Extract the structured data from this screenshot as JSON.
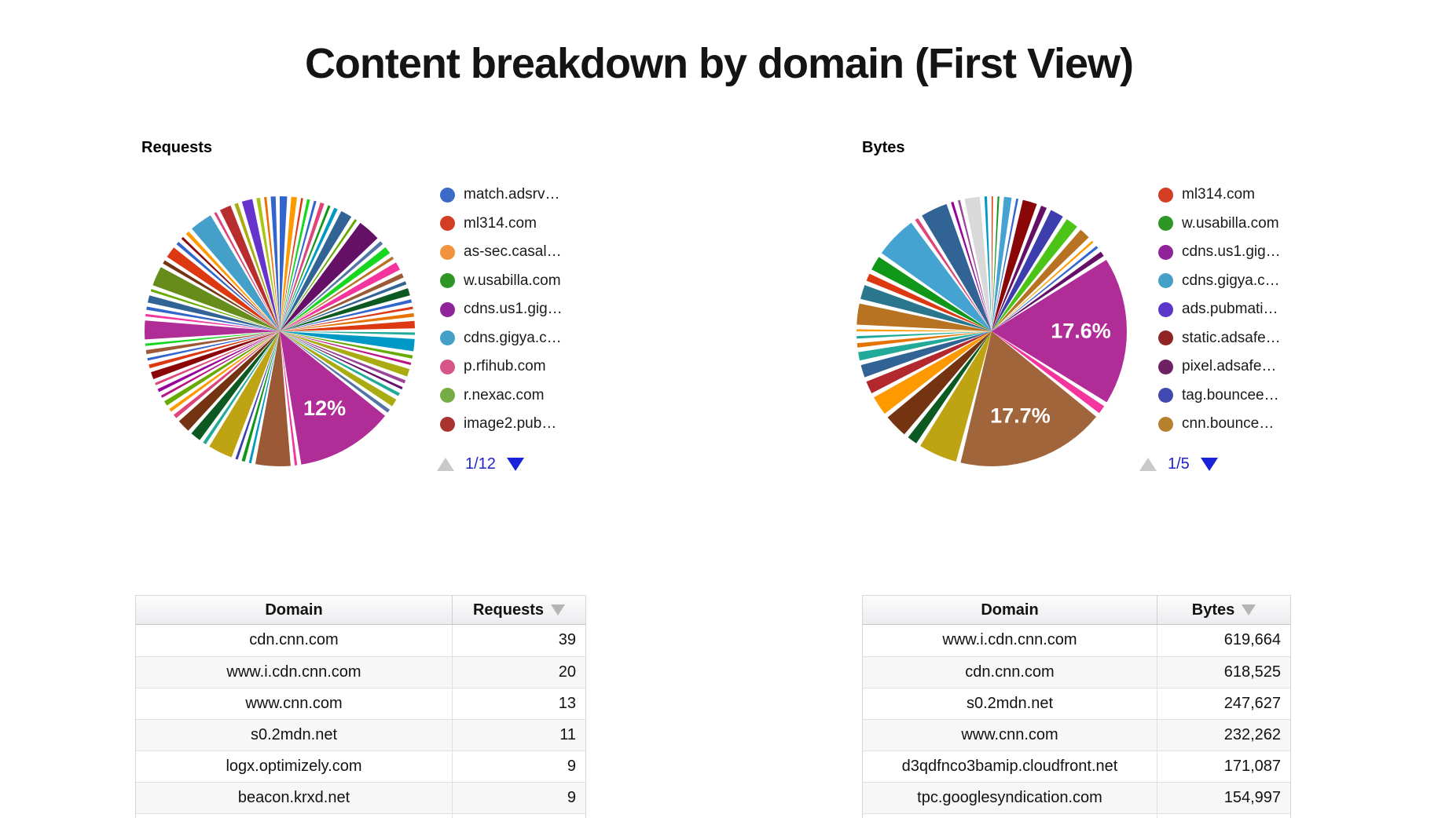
{
  "page": {
    "title": "Content breakdown by domain (First View)"
  },
  "ui_colors": {
    "pager_text_blue": "#2222CC",
    "pager_arrow_active_blue": "#1823D8",
    "pager_arrow_disabled_gray": "#C9C9C9",
    "sort_arrow_gray": "#B5B5B5",
    "table_header_gradient_top": "#FCFCFC",
    "table_header_gradient_bottom": "#ECECF0"
  },
  "chart_data": [
    {
      "type": "pie",
      "title": "Requests",
      "legend_position": "right",
      "pager_label": "1/12",
      "gap_weight": 0.5,
      "legend": [
        {
          "label": "match.adsrv…",
          "color": "#3B6BC7"
        },
        {
          "label": "ml314.com",
          "color": "#D23D23"
        },
        {
          "label": "as-sec.casal…",
          "color": "#F0933C"
        },
        {
          "label": "w.usabilla.com",
          "color": "#2E9625"
        },
        {
          "label": "cdns.us1.gig…",
          "color": "#8E2497"
        },
        {
          "label": "cdns.gigya.c…",
          "color": "#45A0C9"
        },
        {
          "label": "p.rfihub.com",
          "color": "#D65586"
        },
        {
          "label": "r.nexac.com",
          "color": "#76AC43"
        },
        {
          "label": "image2.pub…",
          "color": "#A8332F"
        }
      ],
      "labeled_slices": [
        {
          "label": "12%",
          "value": 12
        }
      ],
      "slices": [
        [
          0.9,
          "#3366CC"
        ],
        [
          0.7,
          "#FF9900"
        ],
        [
          0.25,
          "#DC3912"
        ],
        [
          0.35,
          "#16D620"
        ],
        [
          0.3,
          "#3366CC"
        ],
        [
          0.5,
          "#DD4477"
        ],
        [
          0.3,
          "#109618"
        ],
        [
          0.45,
          "#0099C6"
        ],
        [
          1.4,
          "#316395"
        ],
        [
          0.3,
          "#66AA00"
        ],
        [
          2.8,
          "#651067"
        ],
        [
          0.45,
          "#5574A6"
        ],
        [
          0.9,
          "#16D620"
        ],
        [
          0.35,
          "#B77322"
        ],
        [
          1.0,
          "#F4359E"
        ],
        [
          0.55,
          "#9C5935"
        ],
        [
          0.4,
          "#316395"
        ],
        [
          0.9,
          "#0C5922"
        ],
        [
          0.4,
          "#3366CC"
        ],
        [
          0.3,
          "#DC3912"
        ],
        [
          0.45,
          "#E67300"
        ],
        [
          0.9,
          "#DC3912"
        ],
        [
          0.3,
          "#22AA99"
        ],
        [
          1.5,
          "#0099C6"
        ],
        [
          0.4,
          "#66AA00"
        ],
        [
          0.3,
          "#B91383"
        ],
        [
          0.95,
          "#AAAA11"
        ],
        [
          0.4,
          "#994499"
        ],
        [
          0.3,
          "#651067"
        ],
        [
          0.4,
          "#22AA99"
        ],
        [
          0.95,
          "#AAAA11"
        ],
        [
          0.45,
          "#5574A6"
        ],
        [
          12,
          "#B02C96",
          "12%"
        ],
        [
          0.3,
          "#F4359E"
        ],
        [
          4.3,
          "#9C5935"
        ],
        [
          0.3,
          "#0099C6"
        ],
        [
          0.4,
          "#109618"
        ],
        [
          0.3,
          "#3B3EAC"
        ],
        [
          3.0,
          "#BEA413"
        ],
        [
          0.4,
          "#22AA99"
        ],
        [
          1.3,
          "#0C5922"
        ],
        [
          1.6,
          "#743411"
        ],
        [
          0.5,
          "#DD4477"
        ],
        [
          0.4,
          "#FF9900"
        ],
        [
          0.6,
          "#66AA00"
        ],
        [
          0.3,
          "#B91383"
        ],
        [
          0.4,
          "#990099"
        ],
        [
          0.3,
          "#DD4477"
        ],
        [
          0.9,
          "#8B0707"
        ],
        [
          0.45,
          "#DC3912"
        ],
        [
          0.3,
          "#3366CC"
        ],
        [
          0.5,
          "#9C5935"
        ],
        [
          0.3,
          "#16D620"
        ],
        [
          2.3,
          "#B02C96"
        ],
        [
          0.3,
          "#F4359E"
        ],
        [
          0.4,
          "#3366CC"
        ],
        [
          0.9,
          "#316395"
        ],
        [
          0.3,
          "#66AA00"
        ],
        [
          2.4,
          "#668D1C"
        ],
        [
          0.45,
          "#743411"
        ],
        [
          1.4,
          "#DC3912"
        ],
        [
          0.4,
          "#3366CC"
        ],
        [
          0.3,
          "#8B0707"
        ],
        [
          0.45,
          "#FF9900"
        ],
        [
          2.8,
          "#45A0C9"
        ],
        [
          0.3,
          "#DD4477"
        ],
        [
          1.4,
          "#B82E2E"
        ],
        [
          0.45,
          "#AAAA11"
        ],
        [
          1.3,
          "#6633CC"
        ],
        [
          0.45,
          "#A9C413"
        ],
        [
          0.3,
          "#E67300"
        ],
        [
          0.6,
          "#3366CC"
        ]
      ]
    },
    {
      "type": "pie",
      "title": "Bytes",
      "legend_position": "right",
      "pager_label": "1/5",
      "gap_weight": 0.55,
      "legend": [
        {
          "label": "ml314.com",
          "color": "#D23D23"
        },
        {
          "label": "w.usabilla.com",
          "color": "#2E9625"
        },
        {
          "label": "cdns.us1.gig…",
          "color": "#8E2497"
        },
        {
          "label": "cdns.gigya.c…",
          "color": "#45A0C9"
        },
        {
          "label": "ads.pubmati…",
          "color": "#5C35C9"
        },
        {
          "label": "static.adsafe…",
          "color": "#8E2423"
        },
        {
          "label": "pixel.adsafe…",
          "color": "#6E2263"
        },
        {
          "label": "tag.bouncee…",
          "color": "#4149B0"
        },
        {
          "label": "cnn.bounce…",
          "color": "#B5812E"
        }
      ],
      "labeled_slices": [
        {
          "label": "17.6%",
          "value": 17.6
        },
        {
          "label": "17.7%",
          "value": 17.7
        }
      ],
      "slices": [
        [
          0.15,
          "#DC3912"
        ],
        [
          0.2,
          "#109618"
        ],
        [
          0.9,
          "#45A3D2"
        ],
        [
          0.25,
          "#3366CC"
        ],
        [
          1.7,
          "#8B0707"
        ],
        [
          0.7,
          "#651067"
        ],
        [
          1.6,
          "#3B3EAC"
        ],
        [
          1.5,
          "#4CC417"
        ],
        [
          1.3,
          "#B77322"
        ],
        [
          0.25,
          "#FF9900"
        ],
        [
          0.3,
          "#3366CC"
        ],
        [
          0.6,
          "#651067"
        ],
        [
          17.6,
          "#B02C96",
          "17.6%"
        ],
        [
          1.0,
          "#F4359E"
        ],
        [
          17.7,
          "#A1653C",
          "17.7%"
        ],
        [
          4.6,
          "#BEA413"
        ],
        [
          1.2,
          "#0C5922"
        ],
        [
          2.8,
          "#743411"
        ],
        [
          2.3,
          "#FF9900"
        ],
        [
          1.5,
          "#B3282D"
        ],
        [
          1.5,
          "#316395"
        ],
        [
          1.0,
          "#22AA99"
        ],
        [
          0.5,
          "#E67300"
        ],
        [
          0.3,
          "#22AA99"
        ],
        [
          0.25,
          "#FF9900"
        ],
        [
          2.5,
          "#B77322"
        ],
        [
          1.7,
          "#2A778D"
        ],
        [
          0.9,
          "#DC3912"
        ],
        [
          1.7,
          "#109618"
        ],
        [
          5.0,
          "#45A3D2"
        ],
        [
          0.4,
          "#DD4477"
        ],
        [
          3.2,
          "#316395"
        ],
        [
          0.3,
          "#990099"
        ],
        [
          0.25,
          "#994499"
        ],
        [
          1.8,
          "#D9D9D9"
        ],
        [
          0.3,
          "#0099C6"
        ]
      ]
    },
    {
      "type": "table",
      "columns": [
        "Domain",
        "Requests"
      ],
      "sort_indicator": "desc",
      "rows": [
        [
          "cdn.cnn.com",
          "39"
        ],
        [
          "www.i.cdn.cnn.com",
          "20"
        ],
        [
          "www.cnn.com",
          "13"
        ],
        [
          "s0.2mdn.net",
          "11"
        ],
        [
          "logx.optimizely.com",
          "9"
        ],
        [
          "beacon.krxd.net",
          "9"
        ]
      ]
    },
    {
      "type": "table",
      "columns": [
        "Domain",
        "Bytes"
      ],
      "sort_indicator": "desc",
      "rows": [
        [
          "www.i.cdn.cnn.com",
          "619,664"
        ],
        [
          "cdn.cnn.com",
          "618,525"
        ],
        [
          "s0.2mdn.net",
          "247,627"
        ],
        [
          "www.cnn.com",
          "232,262"
        ],
        [
          "d3qdfnco3bamip.cloudfront.net",
          "171,087"
        ],
        [
          "tpc.googlesyndication.com",
          "154,997"
        ]
      ]
    }
  ]
}
